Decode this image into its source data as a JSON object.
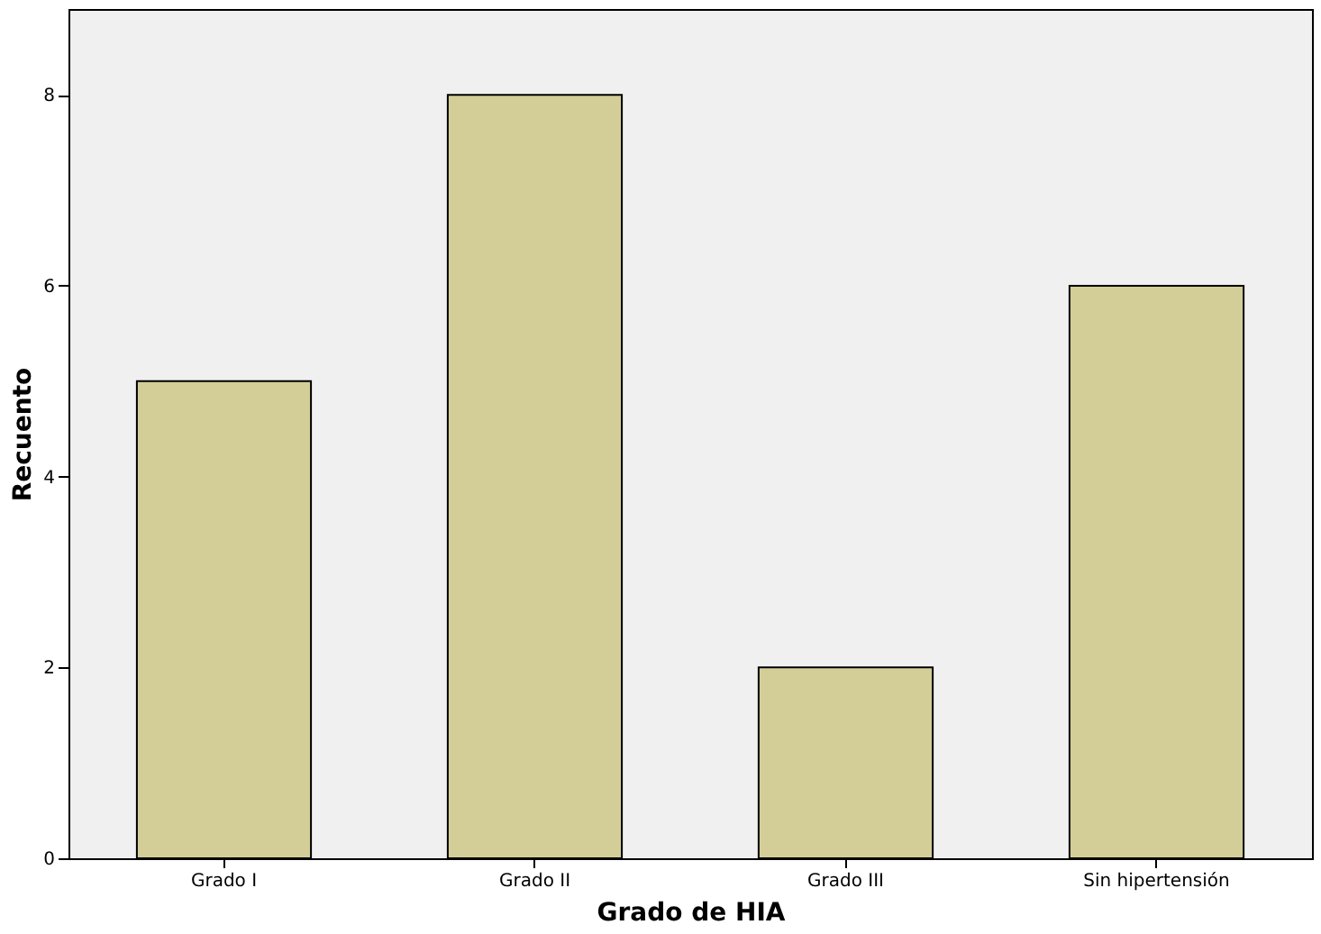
{
  "chart_data": {
    "type": "bar",
    "xlabel": "Grado de HIA",
    "ylabel": "Recuento",
    "categories": [
      "Grado I",
      "Grado II",
      "Grado III",
      "Sin hipertensión"
    ],
    "values": [
      5,
      8,
      2,
      6
    ],
    "color": "#d3ce98",
    "ylim": [
      0,
      8.9
    ],
    "yticks": [
      0,
      2,
      4,
      6,
      8
    ],
    "grid": false
  }
}
